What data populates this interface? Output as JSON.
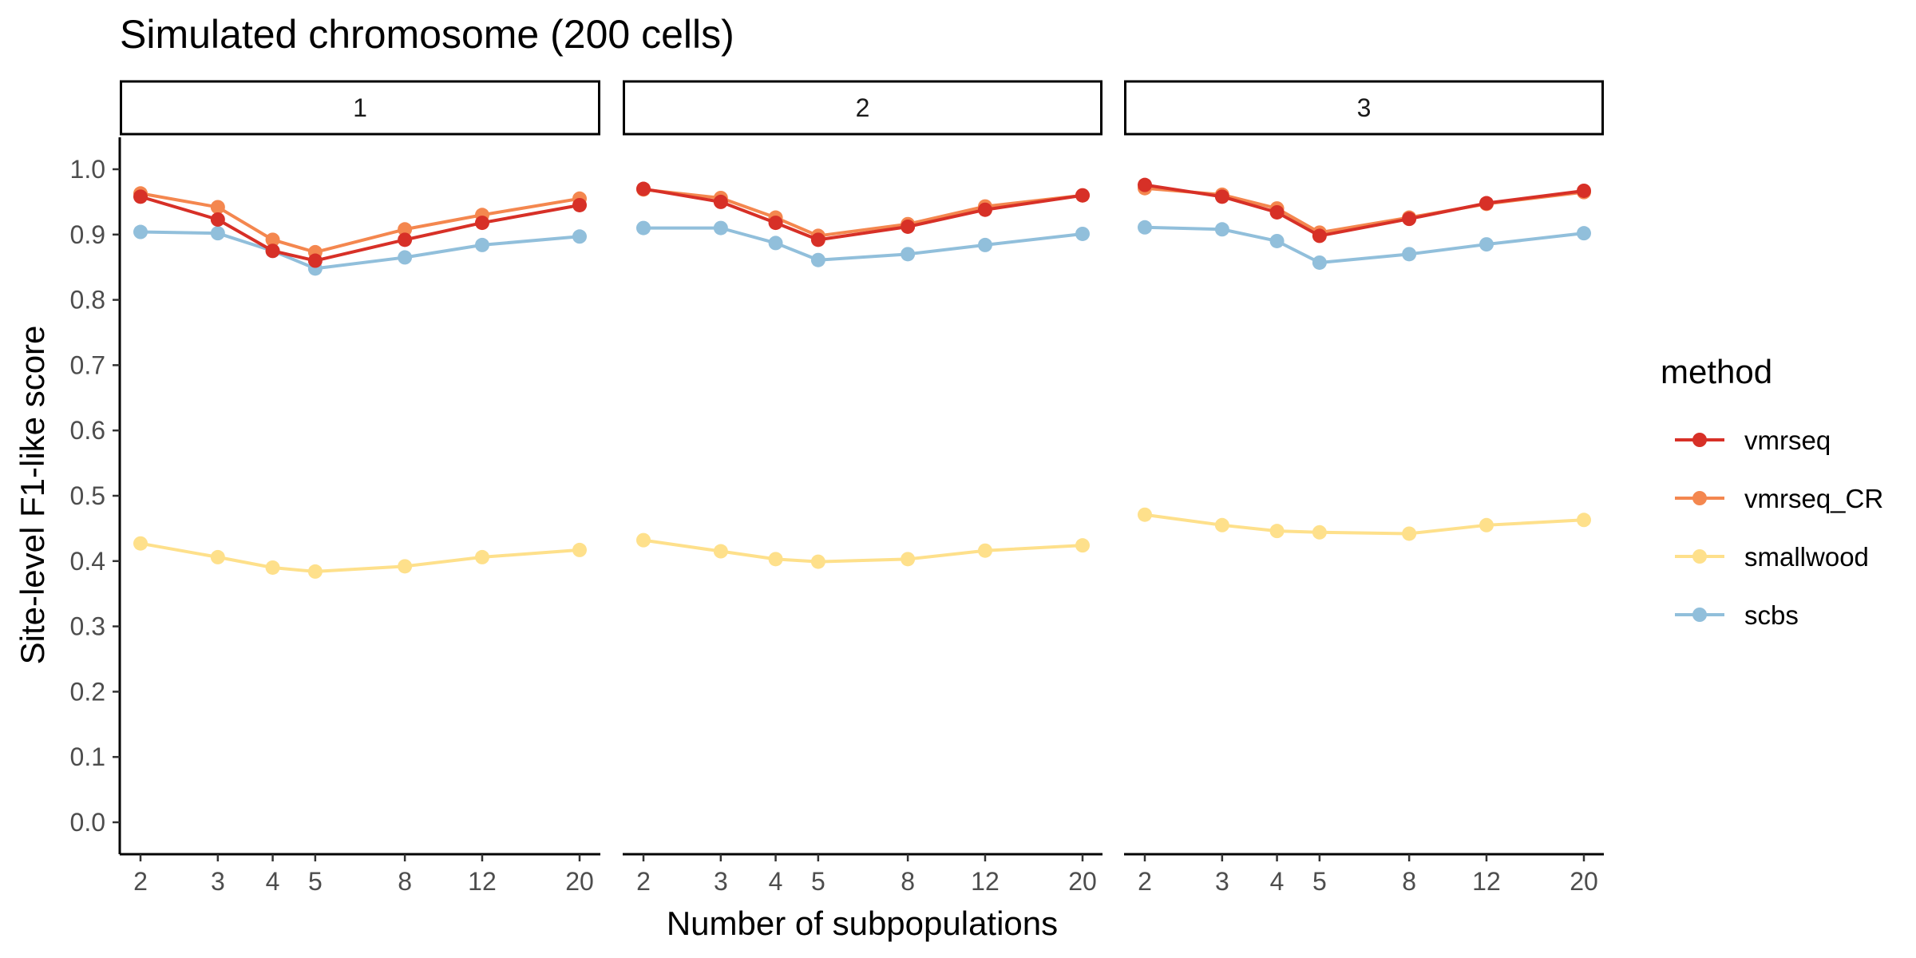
{
  "chart_data": {
    "type": "line",
    "title": "Simulated chromosome (200 cells)",
    "xlabel": "Number of subpopulations",
    "ylabel": "Site-level F1-like score",
    "x": [
      2,
      3,
      4,
      5,
      8,
      12,
      20
    ],
    "x_scale": "log",
    "x_ticks": [
      "2",
      "3",
      "4",
      "5",
      "8",
      "12",
      "20"
    ],
    "ylim": [
      -0.05,
      1.05
    ],
    "y_ticks": [
      "0.0",
      "0.1",
      "0.2",
      "0.3",
      "0.4",
      "0.5",
      "0.6",
      "0.7",
      "0.8",
      "0.9",
      "1.0"
    ],
    "grid": false,
    "legend": {
      "title": "method",
      "position": "right"
    },
    "facets": [
      {
        "label": "1",
        "series": [
          {
            "name": "vmrseq",
            "color": "#d73027",
            "values": [
              0.958,
              0.923,
              0.875,
              0.86,
              0.892,
              0.918,
              0.945
            ]
          },
          {
            "name": "vmrseq_CR",
            "color": "#f4874f",
            "values": [
              0.963,
              0.942,
              0.892,
              0.873,
              0.908,
              0.93,
              0.955
            ]
          },
          {
            "name": "smallwood",
            "color": "#fee08b",
            "values": [
              0.427,
              0.406,
              0.39,
              0.384,
              0.392,
              0.406,
              0.417
            ]
          },
          {
            "name": "scbs",
            "color": "#91bfdb",
            "values": [
              0.904,
              0.902,
              0.875,
              0.848,
              0.865,
              0.884,
              0.897
            ]
          }
        ]
      },
      {
        "label": "2",
        "series": [
          {
            "name": "vmrseq",
            "color": "#d73027",
            "values": [
              0.97,
              0.95,
              0.918,
              0.892,
              0.912,
              0.938,
              0.96
            ]
          },
          {
            "name": "vmrseq_CR",
            "color": "#f4874f",
            "values": [
              0.969,
              0.956,
              0.926,
              0.898,
              0.916,
              0.943,
              0.96
            ]
          },
          {
            "name": "smallwood",
            "color": "#fee08b",
            "values": [
              0.432,
              0.415,
              0.403,
              0.399,
              0.403,
              0.416,
              0.424
            ]
          },
          {
            "name": "scbs",
            "color": "#91bfdb",
            "values": [
              0.91,
              0.91,
              0.887,
              0.861,
              0.87,
              0.884,
              0.901
            ]
          }
        ]
      },
      {
        "label": "3",
        "series": [
          {
            "name": "vmrseq",
            "color": "#d73027",
            "values": [
              0.976,
              0.958,
              0.934,
              0.898,
              0.924,
              0.948,
              0.967
            ]
          },
          {
            "name": "vmrseq_CR",
            "color": "#f4874f",
            "values": [
              0.971,
              0.961,
              0.94,
              0.903,
              0.926,
              0.947,
              0.965
            ]
          },
          {
            "name": "smallwood",
            "color": "#fee08b",
            "values": [
              0.471,
              0.455,
              0.446,
              0.444,
              0.442,
              0.455,
              0.463
            ]
          },
          {
            "name": "scbs",
            "color": "#91bfdb",
            "values": [
              0.911,
              0.908,
              0.89,
              0.857,
              0.87,
              0.885,
              0.902
            ]
          }
        ]
      }
    ]
  }
}
